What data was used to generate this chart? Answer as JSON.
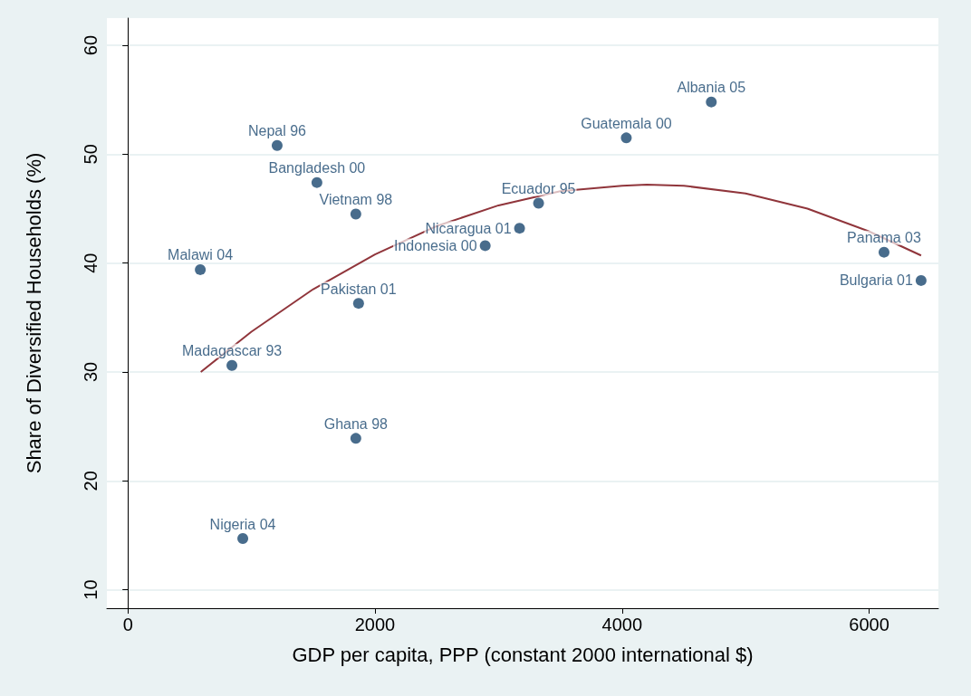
{
  "chart_data": {
    "type": "scatter",
    "xlabel": "GDP per capita, PPP (constant 2000 international $)",
    "ylabel": "Share of Diversified Households (%)",
    "series": [
      {
        "color": "#1a476f",
        "marker": "circle",
        "x": [
          1208,
          1530,
          1845,
          586,
          1867,
          842,
          1845,
          930,
          2892,
          3170,
          3324,
          4034,
          4722,
          6120,
          6420
        ],
        "values": [
          50.8,
          47.4,
          44.5,
          39.4,
          36.3,
          30.6,
          23.9,
          14.7,
          41.6,
          43.2,
          45.5,
          51.5,
          54.8,
          41.0,
          38.4
        ]
      },
      {
        "type": "line",
        "color": "#90353b",
        "marker": "none",
        "line_style": "solid",
        "x": [
          590,
          1000,
          1500,
          2000,
          2500,
          3000,
          3500,
          4000,
          4200,
          4500,
          5000,
          5500,
          6000,
          6420
        ],
        "values": [
          30.0,
          33.7,
          37.6,
          40.8,
          43.4,
          45.3,
          46.6,
          47.1,
          47.2,
          47.1,
          46.4,
          45.0,
          42.9,
          40.7
        ]
      }
    ],
    "annotations": [
      {
        "text": "Nepal 96",
        "x": 1208,
        "y": 50.8
      },
      {
        "text": "Bangladesh 00",
        "x": 1530,
        "y": 47.4
      },
      {
        "text": "Vietnam 98",
        "x": 1845,
        "y": 44.5
      },
      {
        "text": "Malawi 04",
        "x": 586,
        "y": 39.4
      },
      {
        "text": "Pakistan 01",
        "x": 1867,
        "y": 36.3
      },
      {
        "text": "Madagascar 93",
        "x": 842,
        "y": 30.6
      },
      {
        "text": "Ghana 98",
        "x": 1845,
        "y": 23.9
      },
      {
        "text": "Nigeria 04",
        "x": 930,
        "y": 14.7
      },
      {
        "text": "Indonesia 00",
        "x": 2892,
        "y": 41.6
      },
      {
        "text": "Nicaragua 01",
        "x": 3170,
        "y": 43.2
      },
      {
        "text": "Ecuador 95",
        "x": 3324,
        "y": 45.5
      },
      {
        "text": "Guatemala 00",
        "x": 4034,
        "y": 51.5
      },
      {
        "text": "Albania 05",
        "x": 4722,
        "y": 54.8
      },
      {
        "text": "Panama 03",
        "x": 6120,
        "y": 41.0
      },
      {
        "text": "Bulgaria 01",
        "x": 6420,
        "y": 38.4
      }
    ],
    "xlim": [
      -170,
      6560
    ],
    "xticks": [
      0,
      2000,
      4000,
      6000
    ],
    "ylim": [
      8.3,
      62.5
    ],
    "yticks": [
      10,
      20,
      30,
      40,
      50,
      60
    ],
    "grid": "y"
  }
}
